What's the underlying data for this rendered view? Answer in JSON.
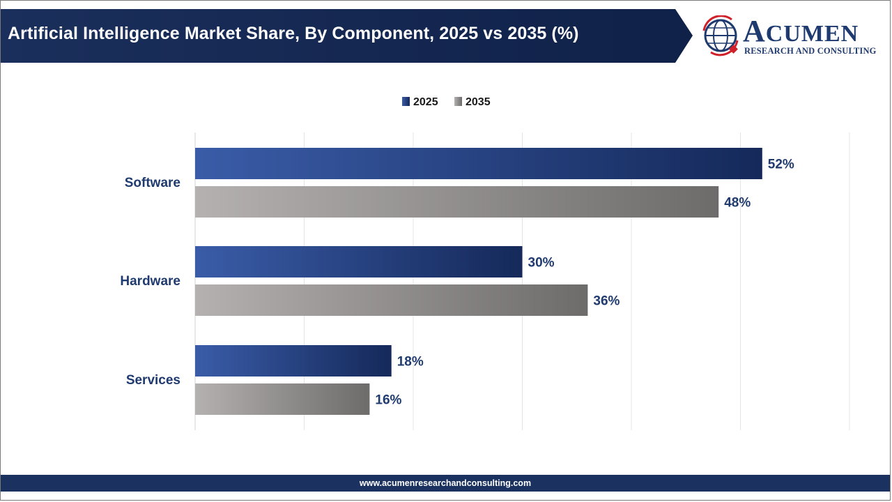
{
  "header": {
    "title": "Artificial Intelligence Market Share, By Component, 2025 vs 2035 (%)"
  },
  "logo": {
    "wordmark_initial": "A",
    "wordmark_rest": "CUMEN",
    "tagline": "RESEARCH AND CONSULTING",
    "icon": "globe-icon"
  },
  "footer": {
    "url": "www.acumenresearchandconsulting.com"
  },
  "colors": {
    "navy": "#1b3261",
    "series_2025_light": "#3a5ca8",
    "series_2025_dark": "#15295a",
    "series_2035_light": "#b4b1b0",
    "series_2035_dark": "#6e6b6b",
    "label_text": "#1e3a6e",
    "logo_red": "#d0202a"
  },
  "chart_data": {
    "type": "bar",
    "orientation": "horizontal",
    "categories": [
      "Software",
      "Hardware",
      "Services"
    ],
    "series": [
      {
        "name": "2025",
        "values": [
          52,
          30,
          18
        ],
        "labels": [
          "52%",
          "30%",
          "18%"
        ]
      },
      {
        "name": "2035",
        "values": [
          48,
          36,
          16
        ],
        "labels": [
          "48%",
          "36%",
          "16%"
        ]
      }
    ],
    "xlim": [
      0,
      60
    ],
    "grid": "vertical",
    "legend_position": "top-center"
  }
}
